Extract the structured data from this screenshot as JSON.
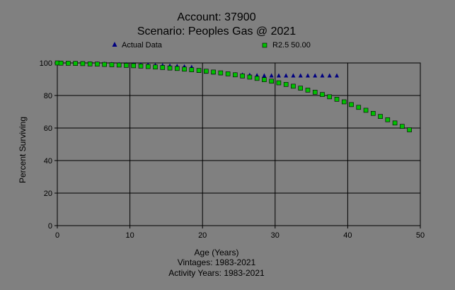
{
  "chart_data": {
    "type": "scatter",
    "title": "Account: 37900",
    "subtitle": "Scenario: Peoples Gas @ 2021",
    "xlabel": "Age (Years)",
    "ylabel": "Percent Surviving",
    "notes": [
      "Vintages: 1983-2021",
      "Activity Years: 1983-2021"
    ],
    "xlim": [
      0,
      50
    ],
    "ylim": [
      0,
      100
    ],
    "x_ticks": [
      "0",
      "10",
      "20",
      "30",
      "40",
      "50"
    ],
    "y_ticks": [
      "0",
      "20",
      "40",
      "60",
      "80",
      "100"
    ],
    "grid": true,
    "legend_position": "top",
    "series": [
      {
        "name": "Actual Data",
        "marker": "triangle",
        "color": "#000080",
        "x": [
          0,
          0.5,
          1.5,
          2.5,
          3.5,
          4.5,
          5.5,
          6.5,
          7.5,
          8.5,
          9.5,
          10.5,
          11.5,
          12.5,
          13.5,
          14.5,
          15.5,
          16.5,
          17.5,
          18.5,
          19.5,
          20.5,
          21.5,
          22.5,
          23.5,
          24.5,
          25.5,
          26.5,
          27.5,
          28.5,
          29.5,
          30.5,
          31.5,
          32.5,
          33.5,
          34.5,
          35.5,
          36.5,
          37.5,
          38.5
        ],
        "y": [
          100,
          100,
          99.9,
          99.8,
          99.7,
          99.6,
          99.5,
          99.4,
          99.3,
          99.2,
          99.1,
          99.0,
          98.9,
          98.8,
          98.6,
          98.4,
          98.2,
          98.0,
          97.7,
          97.4,
          95.0,
          94.5,
          94.0,
          93.6,
          93.2,
          92.9,
          92.7,
          92.5,
          92.3,
          92.2,
          92.2,
          92.2,
          92.2,
          92.2,
          92.2,
          92.2,
          92.2,
          92.2,
          92.2,
          92.2
        ]
      },
      {
        "name": "R2.5 50.00",
        "marker": "square",
        "color": "#00c000",
        "x": [
          0,
          0.5,
          1.5,
          2.5,
          3.5,
          4.5,
          5.5,
          6.5,
          7.5,
          8.5,
          9.5,
          10.5,
          11.5,
          12.5,
          13.5,
          14.5,
          15.5,
          16.5,
          17.5,
          18.5,
          19.5,
          20.5,
          21.5,
          22.5,
          23.5,
          24.5,
          25.5,
          26.5,
          27.5,
          28.5,
          29.5,
          30.5,
          31.5,
          32.5,
          33.5,
          34.5,
          35.5,
          36.5,
          37.5,
          38.5,
          39.5,
          40.5,
          41.5,
          42.5,
          43.5,
          44.5,
          45.5,
          46.5,
          47.5,
          48.5
        ],
        "y": [
          100,
          99.9,
          99.8,
          99.7,
          99.6,
          99.4,
          99.3,
          99.1,
          98.9,
          98.7,
          98.5,
          98.3,
          98.1,
          97.8,
          97.5,
          97.2,
          96.9,
          96.6,
          96.2,
          95.8,
          95.4,
          94.9,
          94.4,
          93.9,
          93.3,
          92.7,
          92.0,
          91.3,
          90.5,
          89.7,
          88.8,
          87.8,
          86.8,
          85.7,
          84.5,
          83.3,
          82.0,
          80.6,
          79.2,
          77.7,
          76.1,
          74.4,
          72.7,
          70.9,
          69.0,
          67.1,
          65.1,
          63.1,
          61.0,
          58.9
        ]
      }
    ]
  }
}
